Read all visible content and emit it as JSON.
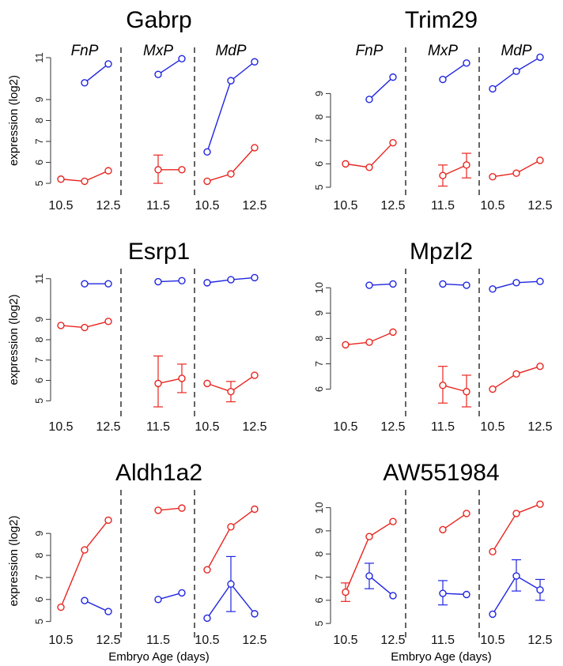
{
  "colors": {
    "red": "#e8251f",
    "blue": "#1f25e0",
    "axis": "#333333"
  },
  "segment_labels": [
    "FnP",
    "MxP",
    "MdP"
  ],
  "x_ticks": [
    "10.5",
    "12.5",
    "11.5",
    "10.5",
    "12.5"
  ],
  "y_axis_label": "expression (log2)",
  "x_axis_label": "Embryo Age  (days)",
  "chart_data": [
    {
      "type": "line",
      "title": "Gabrp",
      "yticks": [
        5,
        6,
        7,
        8,
        9,
        11
      ],
      "ylim": [
        4.7,
        11.3
      ],
      "series": [
        {
          "color": "red",
          "segments": [
            [
              [
                10.5,
                5.2
              ],
              [
                11.5,
                5.1
              ],
              [
                12.5,
                5.6
              ]
            ],
            [
              [
                11.5,
                5.65
              ],
              [
                12.5,
                5.65
              ]
            ],
            [
              [
                10.5,
                5.1
              ],
              [
                11.5,
                5.45
              ],
              [
                12.5,
                6.7
              ]
            ]
          ]
        },
        {
          "color": "blue",
          "segments": [
            [
              [
                11.5,
                9.8
              ],
              [
                12.5,
                10.7
              ]
            ],
            [
              [
                11.5,
                10.2
              ],
              [
                12.5,
                10.95
              ]
            ],
            [
              [
                10.5,
                6.5
              ],
              [
                11.5,
                9.9
              ],
              [
                12.5,
                10.8
              ]
            ]
          ]
        }
      ],
      "error_bars": [
        {
          "color": "red",
          "segment": 1,
          "x": 11.5,
          "low": 5.0,
          "high": 6.35
        }
      ]
    },
    {
      "type": "line",
      "title": "Trim29",
      "yticks": [
        5,
        6,
        7,
        8,
        9
      ],
      "ylim": [
        4.9,
        10.8
      ],
      "series": [
        {
          "color": "red",
          "segments": [
            [
              [
                10.5,
                6.0
              ],
              [
                11.5,
                5.85
              ],
              [
                12.5,
                6.9
              ]
            ],
            [
              [
                11.5,
                5.5
              ],
              [
                12.5,
                5.95
              ]
            ],
            [
              [
                10.5,
                5.45
              ],
              [
                11.5,
                5.6
              ],
              [
                12.5,
                6.15
              ]
            ]
          ]
        },
        {
          "color": "blue",
          "segments": [
            [
              [
                11.5,
                8.75
              ],
              [
                12.5,
                9.7
              ]
            ],
            [
              [
                11.5,
                9.6
              ],
              [
                12.5,
                10.3
              ]
            ],
            [
              [
                10.5,
                9.2
              ],
              [
                11.5,
                9.95
              ],
              [
                12.5,
                10.55
              ]
            ]
          ]
        }
      ],
      "error_bars": [
        {
          "color": "red",
          "segment": 1,
          "x": 11.5,
          "low": 5.05,
          "high": 5.95
        },
        {
          "color": "red",
          "segment": 1,
          "x": 12.5,
          "low": 5.4,
          "high": 6.45
        }
      ]
    },
    {
      "type": "line",
      "title": "Esrp1",
      "yticks": [
        5,
        6,
        7,
        8,
        9,
        11
      ],
      "ylim": [
        4.7,
        11.3
      ],
      "series": [
        {
          "color": "red",
          "segments": [
            [
              [
                10.5,
                8.7
              ],
              [
                11.5,
                8.6
              ],
              [
                12.5,
                8.9
              ]
            ],
            [
              [
                11.5,
                5.85
              ],
              [
                12.5,
                6.1
              ]
            ],
            [
              [
                10.5,
                5.85
              ],
              [
                11.5,
                5.45
              ],
              [
                12.5,
                6.25
              ]
            ]
          ]
        },
        {
          "color": "blue",
          "segments": [
            [
              [
                11.5,
                10.75
              ],
              [
                12.5,
                10.75
              ]
            ],
            [
              [
                11.5,
                10.85
              ],
              [
                12.5,
                10.9
              ]
            ],
            [
              [
                10.5,
                10.8
              ],
              [
                11.5,
                10.95
              ],
              [
                12.5,
                11.05
              ]
            ]
          ]
        }
      ],
      "error_bars": [
        {
          "color": "red",
          "segment": 1,
          "x": 11.5,
          "low": 4.7,
          "high": 7.2
        },
        {
          "color": "red",
          "segment": 1,
          "x": 12.5,
          "low": 5.4,
          "high": 6.8
        },
        {
          "color": "red",
          "segment": 2,
          "x": 11.5,
          "low": 4.95,
          "high": 5.95
        }
      ]
    },
    {
      "type": "line",
      "title": "Mpzl2",
      "yticks": [
        6,
        7,
        8,
        9,
        10
      ],
      "ylim": [
        5.3,
        10.6
      ],
      "series": [
        {
          "color": "red",
          "segments": [
            [
              [
                10.5,
                7.75
              ],
              [
                11.5,
                7.85
              ],
              [
                12.5,
                8.25
              ]
            ],
            [
              [
                11.5,
                6.15
              ],
              [
                12.5,
                5.9
              ]
            ],
            [
              [
                10.5,
                6.0
              ],
              [
                11.5,
                6.6
              ],
              [
                12.5,
                6.9
              ]
            ]
          ]
        },
        {
          "color": "blue",
          "segments": [
            [
              [
                11.5,
                10.1
              ],
              [
                12.5,
                10.15
              ]
            ],
            [
              [
                11.5,
                10.15
              ],
              [
                12.5,
                10.1
              ]
            ],
            [
              [
                10.5,
                9.95
              ],
              [
                11.5,
                10.2
              ],
              [
                12.5,
                10.25
              ]
            ]
          ]
        }
      ],
      "error_bars": [
        {
          "color": "red",
          "segment": 1,
          "x": 11.5,
          "low": 5.45,
          "high": 6.9
        },
        {
          "color": "red",
          "segment": 1,
          "x": 12.5,
          "low": 5.3,
          "high": 6.55
        }
      ]
    },
    {
      "type": "line",
      "title": "Aldh1a2",
      "yticks": [
        5,
        6,
        7,
        8,
        9
      ],
      "ylim": [
        4.7,
        10.8
      ],
      "series": [
        {
          "color": "red",
          "segments": [
            [
              [
                10.5,
                5.65
              ],
              [
                11.5,
                8.25
              ],
              [
                12.5,
                9.6
              ]
            ],
            [
              [
                11.5,
                10.05
              ],
              [
                12.5,
                10.15
              ]
            ],
            [
              [
                10.5,
                7.35
              ],
              [
                11.5,
                9.3
              ],
              [
                12.5,
                10.1
              ]
            ]
          ]
        },
        {
          "color": "blue",
          "segments": [
            [
              [
                11.5,
                5.95
              ],
              [
                12.5,
                5.45
              ]
            ],
            [
              [
                11.5,
                6.0
              ],
              [
                12.5,
                6.3
              ]
            ],
            [
              [
                10.5,
                5.15
              ],
              [
                11.5,
                6.7
              ],
              [
                12.5,
                5.35
              ]
            ]
          ]
        }
      ],
      "error_bars": [
        {
          "color": "blue",
          "segment": 2,
          "x": 11.5,
          "low": 5.45,
          "high": 7.95
        }
      ]
    },
    {
      "type": "line",
      "title": "AW551984",
      "yticks": [
        5,
        6,
        7,
        8,
        9,
        10
      ],
      "ylim": [
        4.8,
        10.6
      ],
      "series": [
        {
          "color": "red",
          "segments": [
            [
              [
                10.5,
                6.35
              ],
              [
                11.5,
                8.75
              ],
              [
                12.5,
                9.4
              ]
            ],
            [
              [
                11.5,
                9.05
              ],
              [
                12.5,
                9.75
              ]
            ],
            [
              [
                10.5,
                8.1
              ],
              [
                11.5,
                9.75
              ],
              [
                12.5,
                10.15
              ]
            ]
          ]
        },
        {
          "color": "blue",
          "segments": [
            [
              [
                11.5,
                7.05
              ],
              [
                12.5,
                6.2
              ]
            ],
            [
              [
                11.5,
                6.3
              ],
              [
                12.5,
                6.25
              ]
            ],
            [
              [
                10.5,
                5.4
              ],
              [
                11.5,
                7.05
              ],
              [
                12.5,
                6.45
              ]
            ]
          ]
        }
      ],
      "error_bars": [
        {
          "color": "red",
          "segment": 0,
          "x": 10.5,
          "low": 5.95,
          "high": 6.75
        },
        {
          "color": "blue",
          "segment": 0,
          "x": 11.5,
          "low": 6.5,
          "high": 7.6
        },
        {
          "color": "blue",
          "segment": 1,
          "x": 11.5,
          "low": 5.8,
          "high": 6.85
        },
        {
          "color": "blue",
          "segment": 2,
          "x": 11.5,
          "low": 6.4,
          "high": 7.75
        },
        {
          "color": "blue",
          "segment": 2,
          "x": 12.5,
          "low": 6.0,
          "high": 6.9
        }
      ]
    }
  ]
}
